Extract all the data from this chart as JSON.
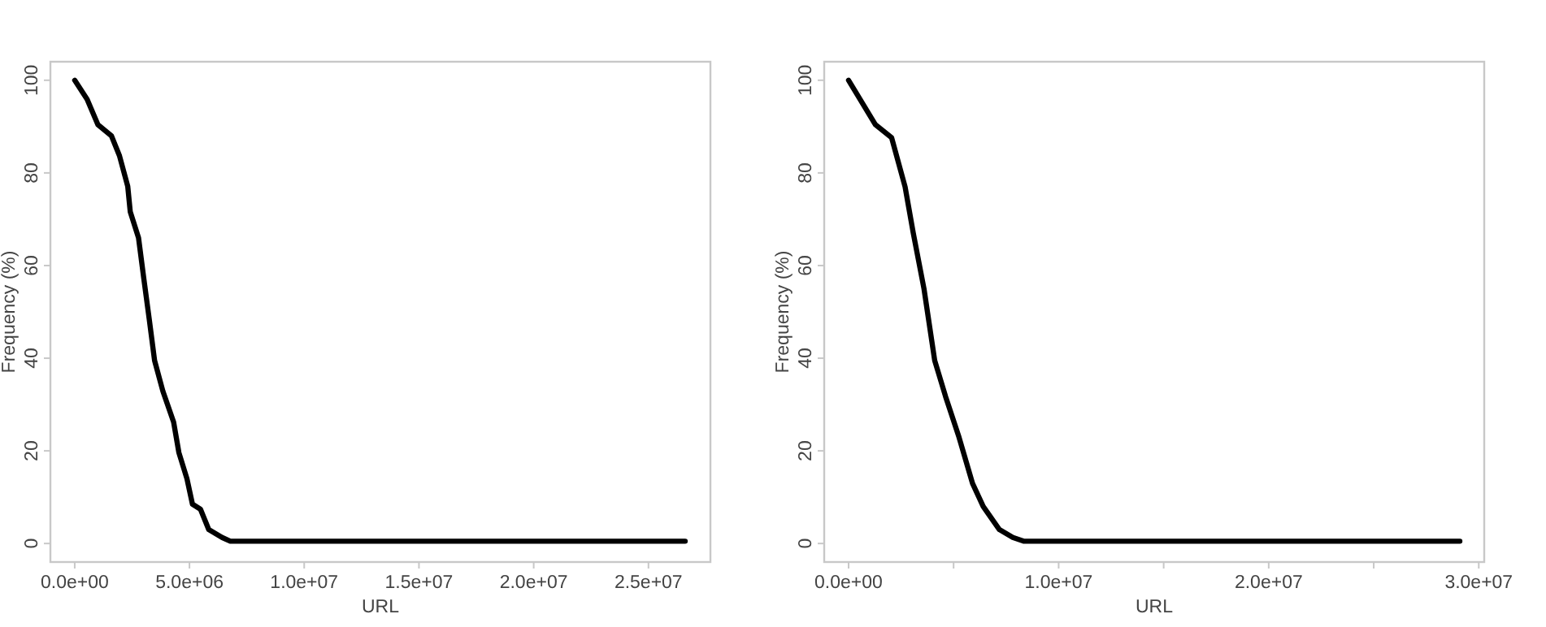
{
  "chart_data": [
    {
      "type": "line",
      "xlabel": "URL",
      "ylabel": "Frequency (%)",
      "xlim": [
        -1060000,
        27700000
      ],
      "ylim": [
        -4,
        104
      ],
      "xticks": [
        {
          "value": 0,
          "label": "0.0e+00"
        },
        {
          "value": 5000000,
          "label": "5.0e+06"
        },
        {
          "value": 10000000,
          "label": "1.0e+07"
        },
        {
          "value": 15000000,
          "label": "1.5e+07"
        },
        {
          "value": 20000000,
          "label": "2.0e+07"
        },
        {
          "value": 25000000,
          "label": "2.5e+07"
        }
      ],
      "yticks": [
        0,
        20,
        40,
        60,
        80,
        100
      ],
      "grid": false,
      "marker": "none",
      "line_style": "solid",
      "series": [
        {
          "color": "#000000",
          "x": [
            0,
            540000,
            1010000,
            1600000,
            1950000,
            2310000,
            2420000,
            2780000,
            3010000,
            3250000,
            3480000,
            3840000,
            4310000,
            4540000,
            4890000,
            5130000,
            5480000,
            5840000,
            6420000,
            6780000,
            26600000
          ],
          "values": [
            100,
            95.9,
            90.4,
            88,
            83.7,
            77.1,
            71.6,
            66,
            57.2,
            48.3,
            39.5,
            32.9,
            26.2,
            19.6,
            14,
            8.5,
            7.4,
            3,
            1.3,
            0.5,
            0.5
          ]
        }
      ]
    },
    {
      "type": "line",
      "xlabel": "URL",
      "ylabel": "Frequency (%)",
      "xlim": [
        -1160000,
        30260000
      ],
      "ylim": [
        -4,
        104
      ],
      "xticks": [
        {
          "value": 0,
          "label": "0.0e+00"
        },
        {
          "value": 5000000,
          "label": null
        },
        {
          "value": 10000000,
          "label": "1.0e+07"
        },
        {
          "value": 15000000,
          "label": null
        },
        {
          "value": 20000000,
          "label": "2.0e+07"
        },
        {
          "value": 25000000,
          "label": null
        },
        {
          "value": 30000000,
          "label": "3.0e+07"
        }
      ],
      "yticks": [
        0,
        20,
        40,
        60,
        80,
        100
      ],
      "grid": false,
      "marker": "none",
      "line_style": "solid",
      "series": [
        {
          "color": "#000000",
          "x": [
            0,
            1280000,
            2050000,
            2690000,
            3080000,
            3590000,
            4100000,
            4620000,
            5260000,
            5900000,
            6410000,
            7180000,
            7820000,
            8330000,
            29100000
          ],
          "values": [
            100,
            90.4,
            87.6,
            77,
            67,
            55,
            39.5,
            31.7,
            22.9,
            13,
            8,
            3,
            1.3,
            0.5,
            0.5
          ]
        }
      ]
    }
  ]
}
